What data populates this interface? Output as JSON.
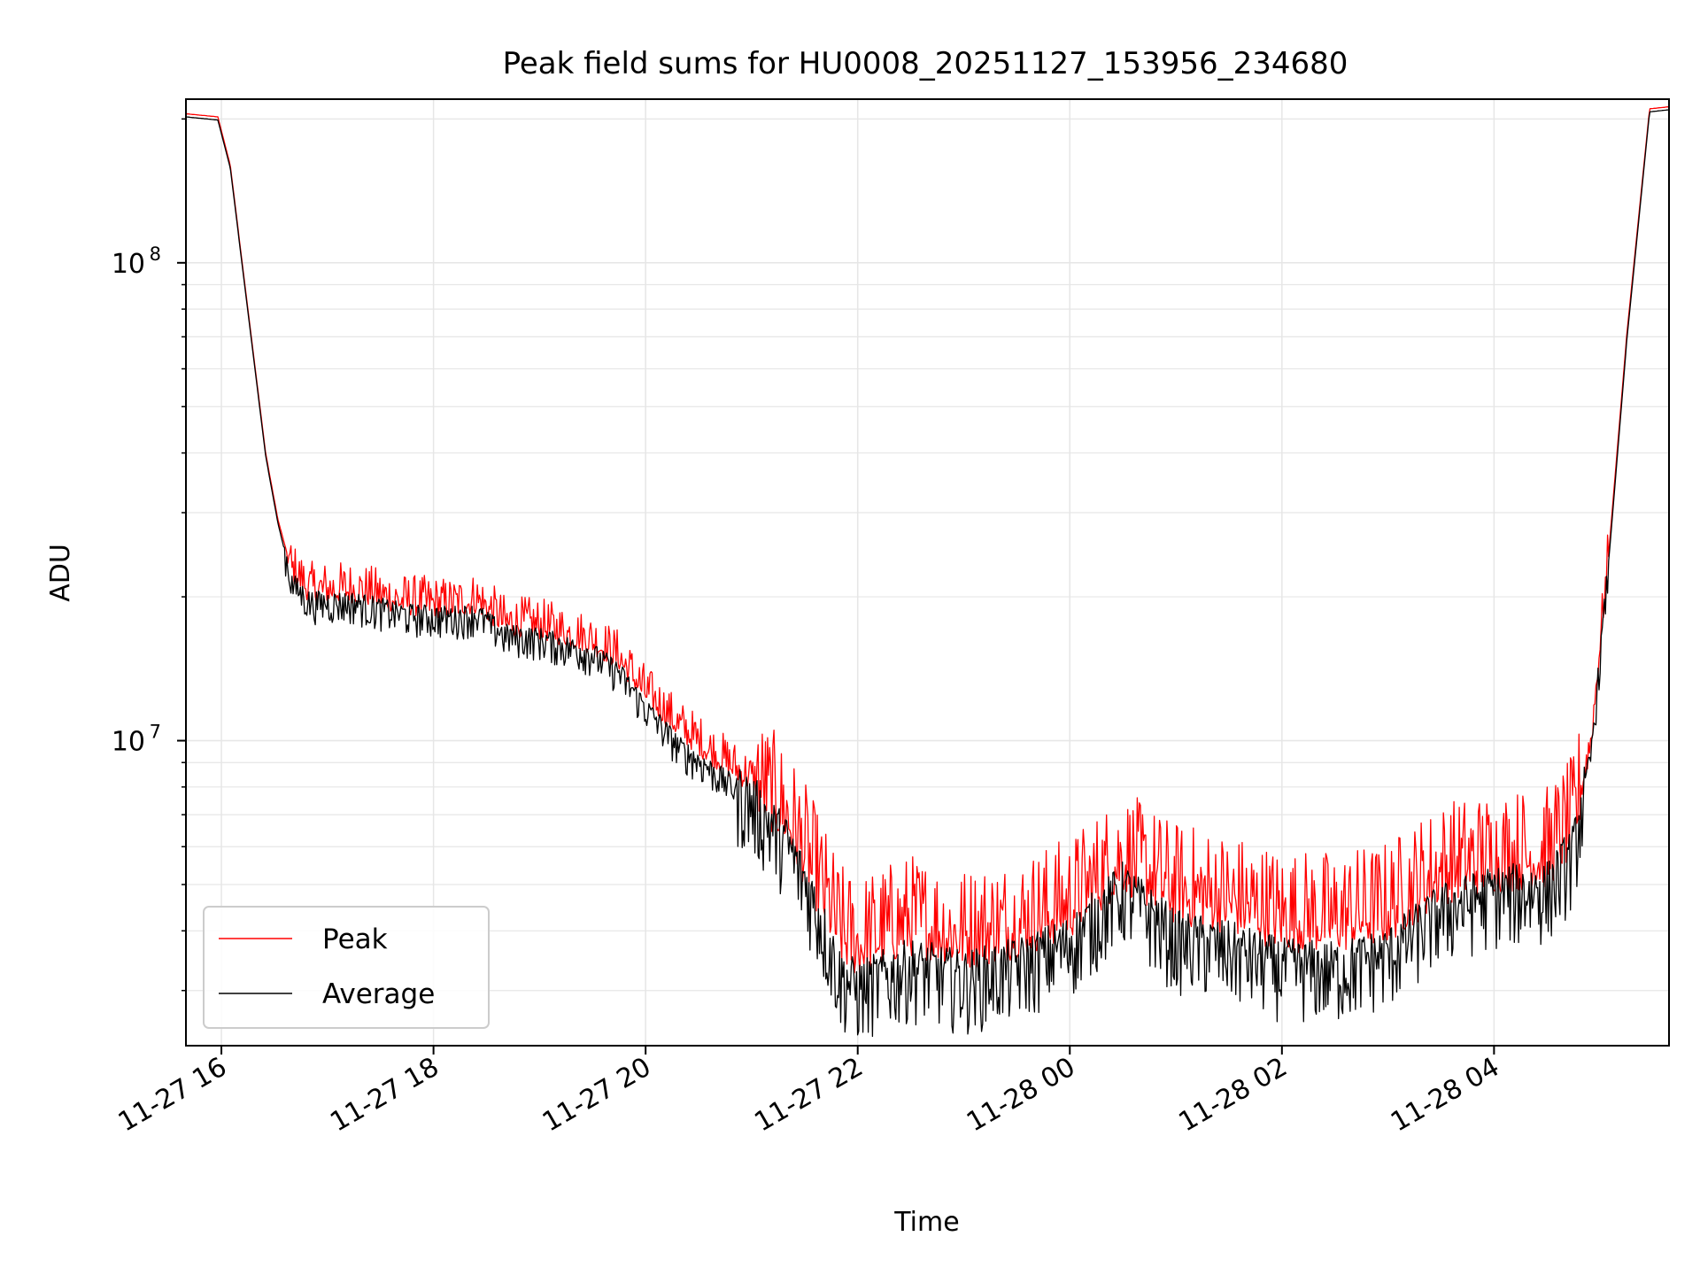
{
  "chart_data": {
    "type": "line",
    "title": "Peak field sums for HU0008_20251127_153956_234680",
    "xlabel": "Time",
    "ylabel": "ADU",
    "y_scale": "log",
    "ylim": [
      2300000,
      220000000
    ],
    "xlim": [
      "2025-11-27 15:39:56",
      "2025-11-28 05:39:00"
    ],
    "grid": true,
    "legend_position": "lower-left",
    "x_ticks": [
      {
        "t": "2025-11-27 16:00",
        "label": "11-27 16"
      },
      {
        "t": "2025-11-27 18:00",
        "label": "11-27 18"
      },
      {
        "t": "2025-11-27 20:00",
        "label": "11-27 20"
      },
      {
        "t": "2025-11-27 22:00",
        "label": "11-27 22"
      },
      {
        "t": "2025-11-28 00:00",
        "label": "11-28 00"
      },
      {
        "t": "2025-11-28 02:00",
        "label": "11-28 02"
      },
      {
        "t": "2025-11-28 04:00",
        "label": "11-28 04"
      }
    ],
    "y_ticks": [
      {
        "value": 10000000,
        "base": "10",
        "exp": "7"
      },
      {
        "value": 100000000,
        "base": "10",
        "exp": "8"
      }
    ],
    "series": [
      {
        "name": "Peak",
        "color": "#ff0000",
        "noise_up": 0.16,
        "noise_down": 0.06,
        "points": [
          [
            "2025-11-27 15:40",
            205000000
          ],
          [
            "2025-11-27 15:58",
            202000000
          ],
          [
            "2025-11-27 16:05",
            160000000
          ],
          [
            "2025-11-27 16:15",
            80000000
          ],
          [
            "2025-11-27 16:25",
            40000000
          ],
          [
            "2025-11-27 16:32",
            29000000
          ],
          [
            "2025-11-27 16:40",
            22500000
          ],
          [
            "2025-11-27 16:50",
            20500000
          ],
          [
            "2025-11-27 17:15",
            20500000
          ],
          [
            "2025-11-27 17:45",
            19300000
          ],
          [
            "2025-11-27 18:10",
            19000000
          ],
          [
            "2025-11-27 18:25",
            19500000
          ],
          [
            "2025-11-27 18:40",
            17500000
          ],
          [
            "2025-11-27 19:00",
            17200000
          ],
          [
            "2025-11-27 19:30",
            16000000
          ],
          [
            "2025-11-27 19:45",
            14800000
          ],
          [
            "2025-11-27 20:00",
            12500000
          ],
          [
            "2025-11-27 20:20",
            10500000
          ],
          [
            "2025-11-27 20:40",
            9200000
          ],
          [
            "2025-11-27 21:00",
            8200000
          ],
          [
            "2025-11-27 21:20",
            6800000
          ],
          [
            "2025-11-27 21:35",
            5200000
          ],
          [
            "2025-11-27 21:50",
            3850000
          ],
          [
            "2025-11-27 22:00",
            3650000
          ],
          [
            "2025-11-27 22:30",
            4050000
          ],
          [
            "2025-11-27 23:00",
            3800000
          ],
          [
            "2025-11-27 23:30",
            4000000
          ],
          [
            "2025-11-28 00:00",
            4400000
          ],
          [
            "2025-11-28 00:30",
            5500000
          ],
          [
            "2025-11-28 01:00",
            4700000
          ],
          [
            "2025-11-28 01:30",
            4500000
          ],
          [
            "2025-11-28 02:00",
            4150000
          ],
          [
            "2025-11-28 02:30",
            4100000
          ],
          [
            "2025-11-28 03:00",
            4300000
          ],
          [
            "2025-11-28 03:30",
            5200000
          ],
          [
            "2025-11-28 04:00",
            5500000
          ],
          [
            "2025-11-28 04:30",
            5600000
          ],
          [
            "2025-11-28 04:45",
            6500000
          ],
          [
            "2025-11-28 04:55",
            10000000
          ],
          [
            "2025-11-28 05:05",
            25000000
          ],
          [
            "2025-11-28 05:15",
            70000000
          ],
          [
            "2025-11-28 05:28",
            210000000
          ],
          [
            "2025-11-28 05:39",
            212000000
          ]
        ]
      },
      {
        "name": "Average",
        "color": "#000000",
        "noise_up": 0.05,
        "noise_down": 0.13,
        "points": [
          [
            "2025-11-27 15:40",
            202000000
          ],
          [
            "2025-11-27 15:58",
            199000000
          ],
          [
            "2025-11-27 16:05",
            158000000
          ],
          [
            "2025-11-27 16:15",
            79000000
          ],
          [
            "2025-11-27 16:25",
            39500000
          ],
          [
            "2025-11-27 16:32",
            28500000
          ],
          [
            "2025-11-27 16:40",
            21500000
          ],
          [
            "2025-11-27 16:50",
            19700000
          ],
          [
            "2025-11-27 17:15",
            19600000
          ],
          [
            "2025-11-27 17:45",
            18500000
          ],
          [
            "2025-11-27 18:10",
            18300000
          ],
          [
            "2025-11-27 18:25",
            18500000
          ],
          [
            "2025-11-27 18:40",
            16800000
          ],
          [
            "2025-11-27 19:00",
            16500000
          ],
          [
            "2025-11-27 19:30",
            15300000
          ],
          [
            "2025-11-27 19:45",
            14000000
          ],
          [
            "2025-11-27 20:00",
            11800000
          ],
          [
            "2025-11-27 20:20",
            9700000
          ],
          [
            "2025-11-27 20:40",
            8600000
          ],
          [
            "2025-11-27 21:00",
            7600000
          ],
          [
            "2025-11-27 21:20",
            6200000
          ],
          [
            "2025-11-27 21:35",
            4700000
          ],
          [
            "2025-11-27 21:50",
            3300000
          ],
          [
            "2025-11-27 22:00",
            3100000
          ],
          [
            "2025-11-27 22:30",
            3450000
          ],
          [
            "2025-11-27 23:00",
            3250000
          ],
          [
            "2025-11-27 23:30",
            3450000
          ],
          [
            "2025-11-28 00:00",
            3850000
          ],
          [
            "2025-11-28 00:30",
            5000000
          ],
          [
            "2025-11-28 01:00",
            3950000
          ],
          [
            "2025-11-28 01:30",
            3750000
          ],
          [
            "2025-11-28 02:00",
            3450000
          ],
          [
            "2025-11-28 02:30",
            3400000
          ],
          [
            "2025-11-28 03:00",
            3650000
          ],
          [
            "2025-11-28 03:30",
            4500000
          ],
          [
            "2025-11-28 04:00",
            4900000
          ],
          [
            "2025-11-28 04:30",
            5000000
          ],
          [
            "2025-11-28 04:45",
            6000000
          ],
          [
            "2025-11-28 04:55",
            9500000
          ],
          [
            "2025-11-28 05:05",
            24000000
          ],
          [
            "2025-11-28 05:15",
            68000000
          ],
          [
            "2025-11-28 05:28",
            207000000
          ],
          [
            "2025-11-28 05:39",
            209000000
          ]
        ]
      }
    ]
  }
}
